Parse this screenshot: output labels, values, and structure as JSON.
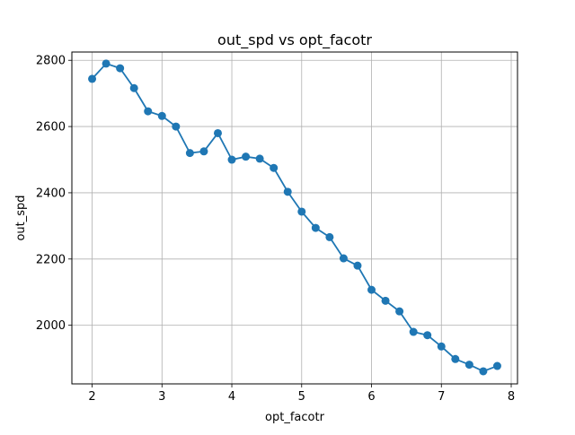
{
  "chart_data": {
    "type": "line",
    "title": "out_spd vs opt_facotr",
    "xlabel": "opt_facotr",
    "ylabel": "out_spd",
    "grid": true,
    "xlim": [
      1.71,
      8.09
    ],
    "ylim": [
      1823,
      2825
    ],
    "xticks": [
      2,
      3,
      4,
      5,
      6,
      7,
      8
    ],
    "yticks": [
      2000,
      2200,
      2400,
      2600,
      2800
    ],
    "series": [
      {
        "name": "out_spd",
        "color": "#1f77b4",
        "marker": "circle",
        "x": [
          2.0,
          2.2,
          2.4,
          2.6,
          2.8,
          3.0,
          3.2,
          3.4,
          3.6,
          3.8,
          4.0,
          4.2,
          4.4,
          4.6,
          4.8,
          5.0,
          5.2,
          5.4,
          5.6,
          5.8,
          6.0,
          6.2,
          6.4,
          6.6,
          6.8,
          7.0,
          7.2,
          7.4,
          7.6,
          7.8
        ],
        "y": [
          2744,
          2790,
          2776,
          2716,
          2646,
          2632,
          2600,
          2520,
          2525,
          2580,
          2500,
          2509,
          2503,
          2475,
          2403,
          2343,
          2294,
          2266,
          2202,
          2180,
          2107,
          2074,
          2042,
          1980,
          1970,
          1936,
          1898,
          1881,
          1861,
          1877
        ]
      }
    ]
  }
}
